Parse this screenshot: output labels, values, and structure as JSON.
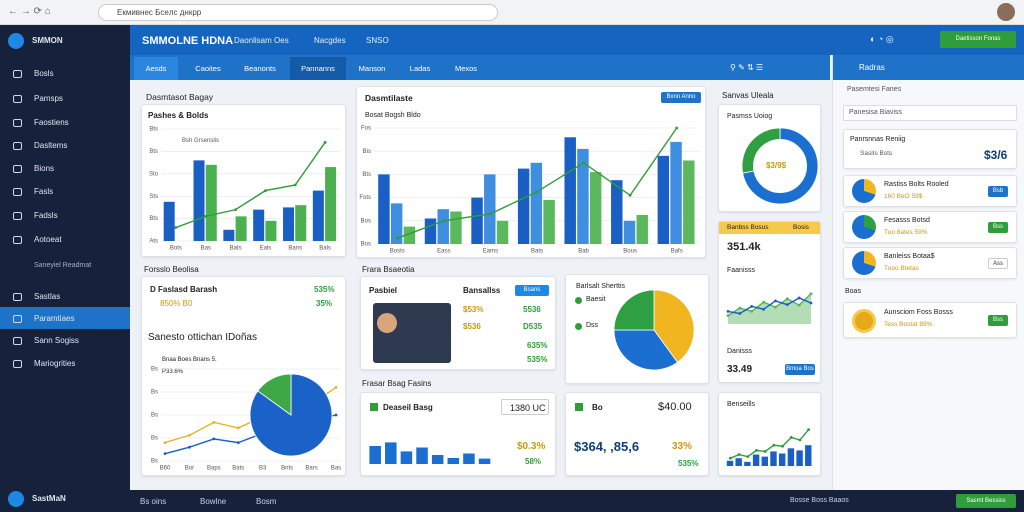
{
  "browser": {
    "url": "Екмивнес Бсeлс днкрр"
  },
  "sidebar": {
    "brand": "SMMON",
    "items": [
      "Bosls",
      "Pamsps",
      "Faostiens",
      "Dasltems",
      "Bions",
      "Fasls",
      "Fadsls",
      "Aotoeat"
    ],
    "section": "Saneyiel Readmat",
    "items2": [
      "Sastlas",
      "Paramtiaes",
      "Sann Sogiss",
      "Mariogrities"
    ],
    "footer": "SastMaN"
  },
  "header": {
    "title": "SMMOLNE HDNA",
    "nav": [
      "Daonlisam Oes",
      "Nacgdes",
      "SNSO"
    ],
    "button": "Daetisson Fonas"
  },
  "tabs": [
    "Aesds",
    "Caoites",
    "Beanonts",
    "Pannanns",
    "Manson",
    "Ladas",
    "Mexos"
  ],
  "cards": {
    "a": {
      "title": "Dasmtasot Bagay",
      "subtitle": "Pashes & Bolds",
      "chart": {
        "type": "bar",
        "legend": "Bsh Grsenslis",
        "categories": [
          "Bots",
          "Bas",
          "Bats",
          "Eals",
          "Bans",
          "Bals"
        ],
        "ylim": [
          0,
          100
        ],
        "yticks": [
          {
            "value": 0,
            "label": "Ats"
          },
          {
            "value": 20,
            "label": "Bts"
          },
          {
            "value": 40,
            "label": "Sts"
          },
          {
            "value": 60,
            "label": "Sto"
          },
          {
            "value": 80,
            "label": "Bts"
          },
          {
            "value": 100,
            "label": "Bts"
          }
        ],
        "series": [
          {
            "color": "#1a5fc4",
            "values": [
              35,
              72,
              10,
              28,
              30,
              45
            ]
          },
          {
            "color": "#4caf50",
            "values": [
              0,
              68,
              22,
              18,
              32,
              66
            ]
          },
          {
            "type": "line",
            "color": "#2e9d3a",
            "values": [
              12,
              22,
              28,
              45,
              50,
              88
            ]
          }
        ]
      }
    },
    "b": {
      "title": "Dasmtilaste",
      "button": "Bxnn Anno",
      "subtitle": "Bosat Bogsh Bldo",
      "chart": {
        "type": "bar",
        "categories": [
          "Bosts",
          "Eass",
          "Eams",
          "Bats",
          "Bab",
          "Bous",
          "Bafs"
        ],
        "ylim": [
          0,
          100
        ],
        "yticks": [
          {
            "value": 0,
            "label": "Bos"
          },
          {
            "value": 20,
            "label": "Bos"
          },
          {
            "value": 40,
            "label": "Fots"
          },
          {
            "value": 60,
            "label": "Bts"
          },
          {
            "value": 80,
            "label": "Bis"
          },
          {
            "value": 100,
            "label": "Fos"
          }
        ],
        "series": [
          {
            "color": "#1a5fc4",
            "values": [
              60,
              22,
              40,
              65,
              92,
              55,
              76
            ]
          },
          {
            "color": "#3f8ee0",
            "values": [
              35,
              30,
              60,
              70,
              82,
              20,
              88
            ]
          },
          {
            "color": "#5cb85c",
            "values": [
              15,
              28,
              20,
              38,
              62,
              25,
              72
            ]
          },
          {
            "type": "line",
            "color": "#2e9d3a",
            "values": [
              5,
              20,
              26,
              45,
              70,
              42,
              100
            ]
          }
        ]
      }
    },
    "f": {
      "section": "Forsslo Beolisa",
      "head": "D Faslasd Barash",
      "head_value": "535%",
      "sub": "850% B0",
      "sub_value": "35%",
      "chart_title": "Sanesto ottichan IDoñas",
      "legend1": "Bnaa Boes Bnans 5.",
      "legend2": "P33.6%",
      "chart": {
        "type": "line",
        "categories": [
          "B60",
          "Bor",
          "Baps",
          "Bats",
          "B3",
          "Bnts",
          "Bars",
          "Bas"
        ],
        "ylim": [
          0,
          100
        ],
        "yticks": [
          {
            "value": 0,
            "label": "Bs"
          },
          {
            "value": 25,
            "label": "Bs"
          },
          {
            "value": 50,
            "label": "Bs"
          },
          {
            "value": 75,
            "label": "Bs"
          },
          {
            "value": 100,
            "label": "Bs"
          }
        ],
        "series": [
          {
            "color": "#e6b422",
            "values": [
              20,
              28,
              42,
              36,
              48,
              58,
              62,
              80
            ]
          },
          {
            "color": "#1a5fc4",
            "values": [
              8,
              15,
              24,
              20,
              30,
              36,
              44,
              50
            ]
          }
        ]
      },
      "pie": {
        "type": "pie",
        "values": [
          85,
          15
        ],
        "colors": [
          "#1a62c8",
          "#3da845"
        ]
      }
    },
    "g": {
      "section": "Frara Bsaeotia",
      "label": "Pasbiel",
      "label2": "Bansallss",
      "chip": "Bsans",
      "stats": [
        "$53%",
        "5536",
        "$536",
        "D535",
        "635%",
        "535%"
      ]
    },
    "h": {
      "title": "Barlsalt Sherttis",
      "legend": [
        "Baesit",
        "Dss"
      ],
      "chart": {
        "type": "pie",
        "values": [
          40,
          35,
          25
        ],
        "colors": [
          "#f0b51f",
          "#1a6fd0",
          "#2ea043"
        ]
      }
    },
    "i": {
      "section": "Frasar Bsag Fasins",
      "title": "Deaseil Basg",
      "value": "1380 UC",
      "stat1": "$0.3%",
      "stat2": "58%",
      "chart": {
        "type": "bar",
        "ylim": [
          0,
          100
        ],
        "series": [
          {
            "color": "#1a6fd0",
            "values": [
              60,
              72,
              42,
              55,
              30,
              20,
              35,
              18
            ]
          }
        ]
      }
    },
    "j": {
      "title": "Bo",
      "value": "$40.00",
      "big": "$364, ,85,6",
      "stat1": "33%",
      "stat2": "535%"
    },
    "k": {
      "title": "Sanvas Uleala",
      "subtitle": "Pasmss Uoiog",
      "center": "$3/9$",
      "chart": {
        "type": "donut",
        "values": [
          72,
          28
        ],
        "colors": [
          "#1a6fd0",
          "#2ea043"
        ]
      }
    },
    "l": {
      "header": "Banbss Bosus",
      "header_right": "Bosis",
      "value": "351.4k",
      "label": "Faanisss",
      "label2": "Danisss",
      "value2": "33.49",
      "button": "Bmoa Bos",
      "chart": {
        "type": "line",
        "ylim": [
          0,
          100
        ],
        "series": [
          {
            "color": "#56b35c",
            "area": true,
            "values": [
              20,
              38,
              30,
              52,
              40,
              60,
              45,
              72
            ]
          },
          {
            "color": "#1a5fc4",
            "values": [
              30,
              25,
              42,
              35,
              55,
              46,
              62,
              50
            ]
          }
        ]
      }
    },
    "m": {
      "title": "Benseills",
      "chart": {
        "type": "bar",
        "ylim": [
          0,
          100
        ],
        "series": [
          {
            "color": "#1a5fc4",
            "values": [
              10,
              15,
              8,
              22,
              18,
              28,
              24,
              34,
              30,
              40
            ]
          },
          {
            "type": "line",
            "color": "#2e9d3a",
            "values": [
              15,
              22,
              18,
              30,
              28,
              40,
              38,
              55,
              50,
              70
            ]
          }
        ]
      }
    }
  },
  "panel": {
    "title": "Radras",
    "rows": [
      "Pasemtesi Fanes",
      "Panesisa Biaviss"
    ],
    "stat_label": "Panrsnnas Reniig",
    "stat_sub": "Sasits Bsts",
    "stat_value": "$3/6",
    "list": [
      {
        "title": "Rastiss Bolts Rooled",
        "sub": "160 BeO 59$",
        "button": "Bsb"
      },
      {
        "title": "Fesasss Botsd",
        "sub": "Tuo 8ates 59%",
        "button": "Bss"
      },
      {
        "title": "Banleiss Botaa$",
        "sub": "Tuoo Btetas",
        "button": "Ass"
      }
    ],
    "section": "Boas",
    "item": {
      "title": "Aunsciom Foss Bosss",
      "sub": "Tess Bostat 89%",
      "button": "Bss"
    }
  },
  "footer": {
    "items": [
      "Bs oins",
      "Bowlne",
      "Bosm"
    ],
    "right": "Bosse Boss Baaos",
    "button": "Sasmt Bessiss"
  }
}
